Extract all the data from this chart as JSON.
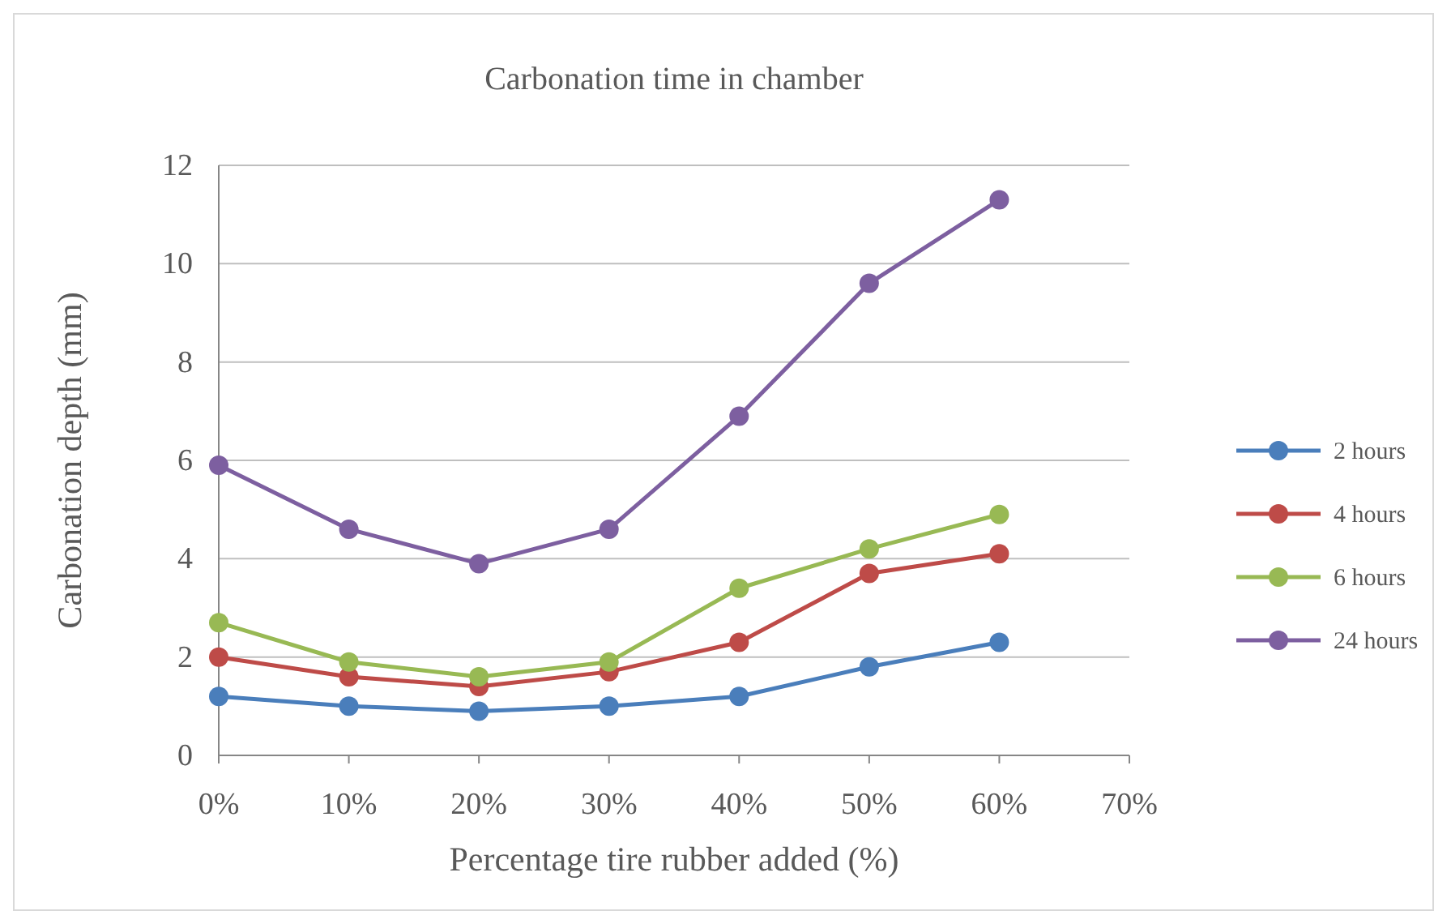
{
  "chart_data": {
    "type": "line",
    "title": "Carbonation time in chamber",
    "xlabel": "Percentage tire rubber added (%)",
    "ylabel": "Carbonation depth (mm)",
    "x": [
      0,
      10,
      20,
      30,
      40,
      50,
      60
    ],
    "xlim": [
      0,
      70
    ],
    "xticks": [
      {
        "value": 0,
        "label": "0%"
      },
      {
        "value": 10,
        "label": "10%"
      },
      {
        "value": 20,
        "label": "20%"
      },
      {
        "value": 30,
        "label": "30%"
      },
      {
        "value": 40,
        "label": "40%"
      },
      {
        "value": 50,
        "label": "50%"
      },
      {
        "value": 60,
        "label": "60%"
      },
      {
        "value": 70,
        "label": "70%"
      }
    ],
    "ylim": [
      0,
      12
    ],
    "yticks": [
      0,
      2,
      4,
      6,
      8,
      10,
      12
    ],
    "grid": "y",
    "legend": "right",
    "marker": "circle",
    "line_style": "solid",
    "series": [
      {
        "name": "2 hours",
        "color": "#4a7ebb",
        "values": [
          1.2,
          1.0,
          0.9,
          1.0,
          1.2,
          1.8,
          2.3
        ]
      },
      {
        "name": "4 hours",
        "color": "#be4b48",
        "values": [
          2.0,
          1.6,
          1.4,
          1.7,
          2.3,
          3.7,
          4.1
        ]
      },
      {
        "name": "6 hours",
        "color": "#98b954",
        "values": [
          2.7,
          1.9,
          1.6,
          1.9,
          3.4,
          4.2,
          4.9
        ]
      },
      {
        "name": "24 hours",
        "color": "#7d5fa0",
        "values": [
          5.9,
          4.6,
          3.9,
          4.6,
          6.9,
          9.6,
          11.3
        ]
      }
    ]
  }
}
